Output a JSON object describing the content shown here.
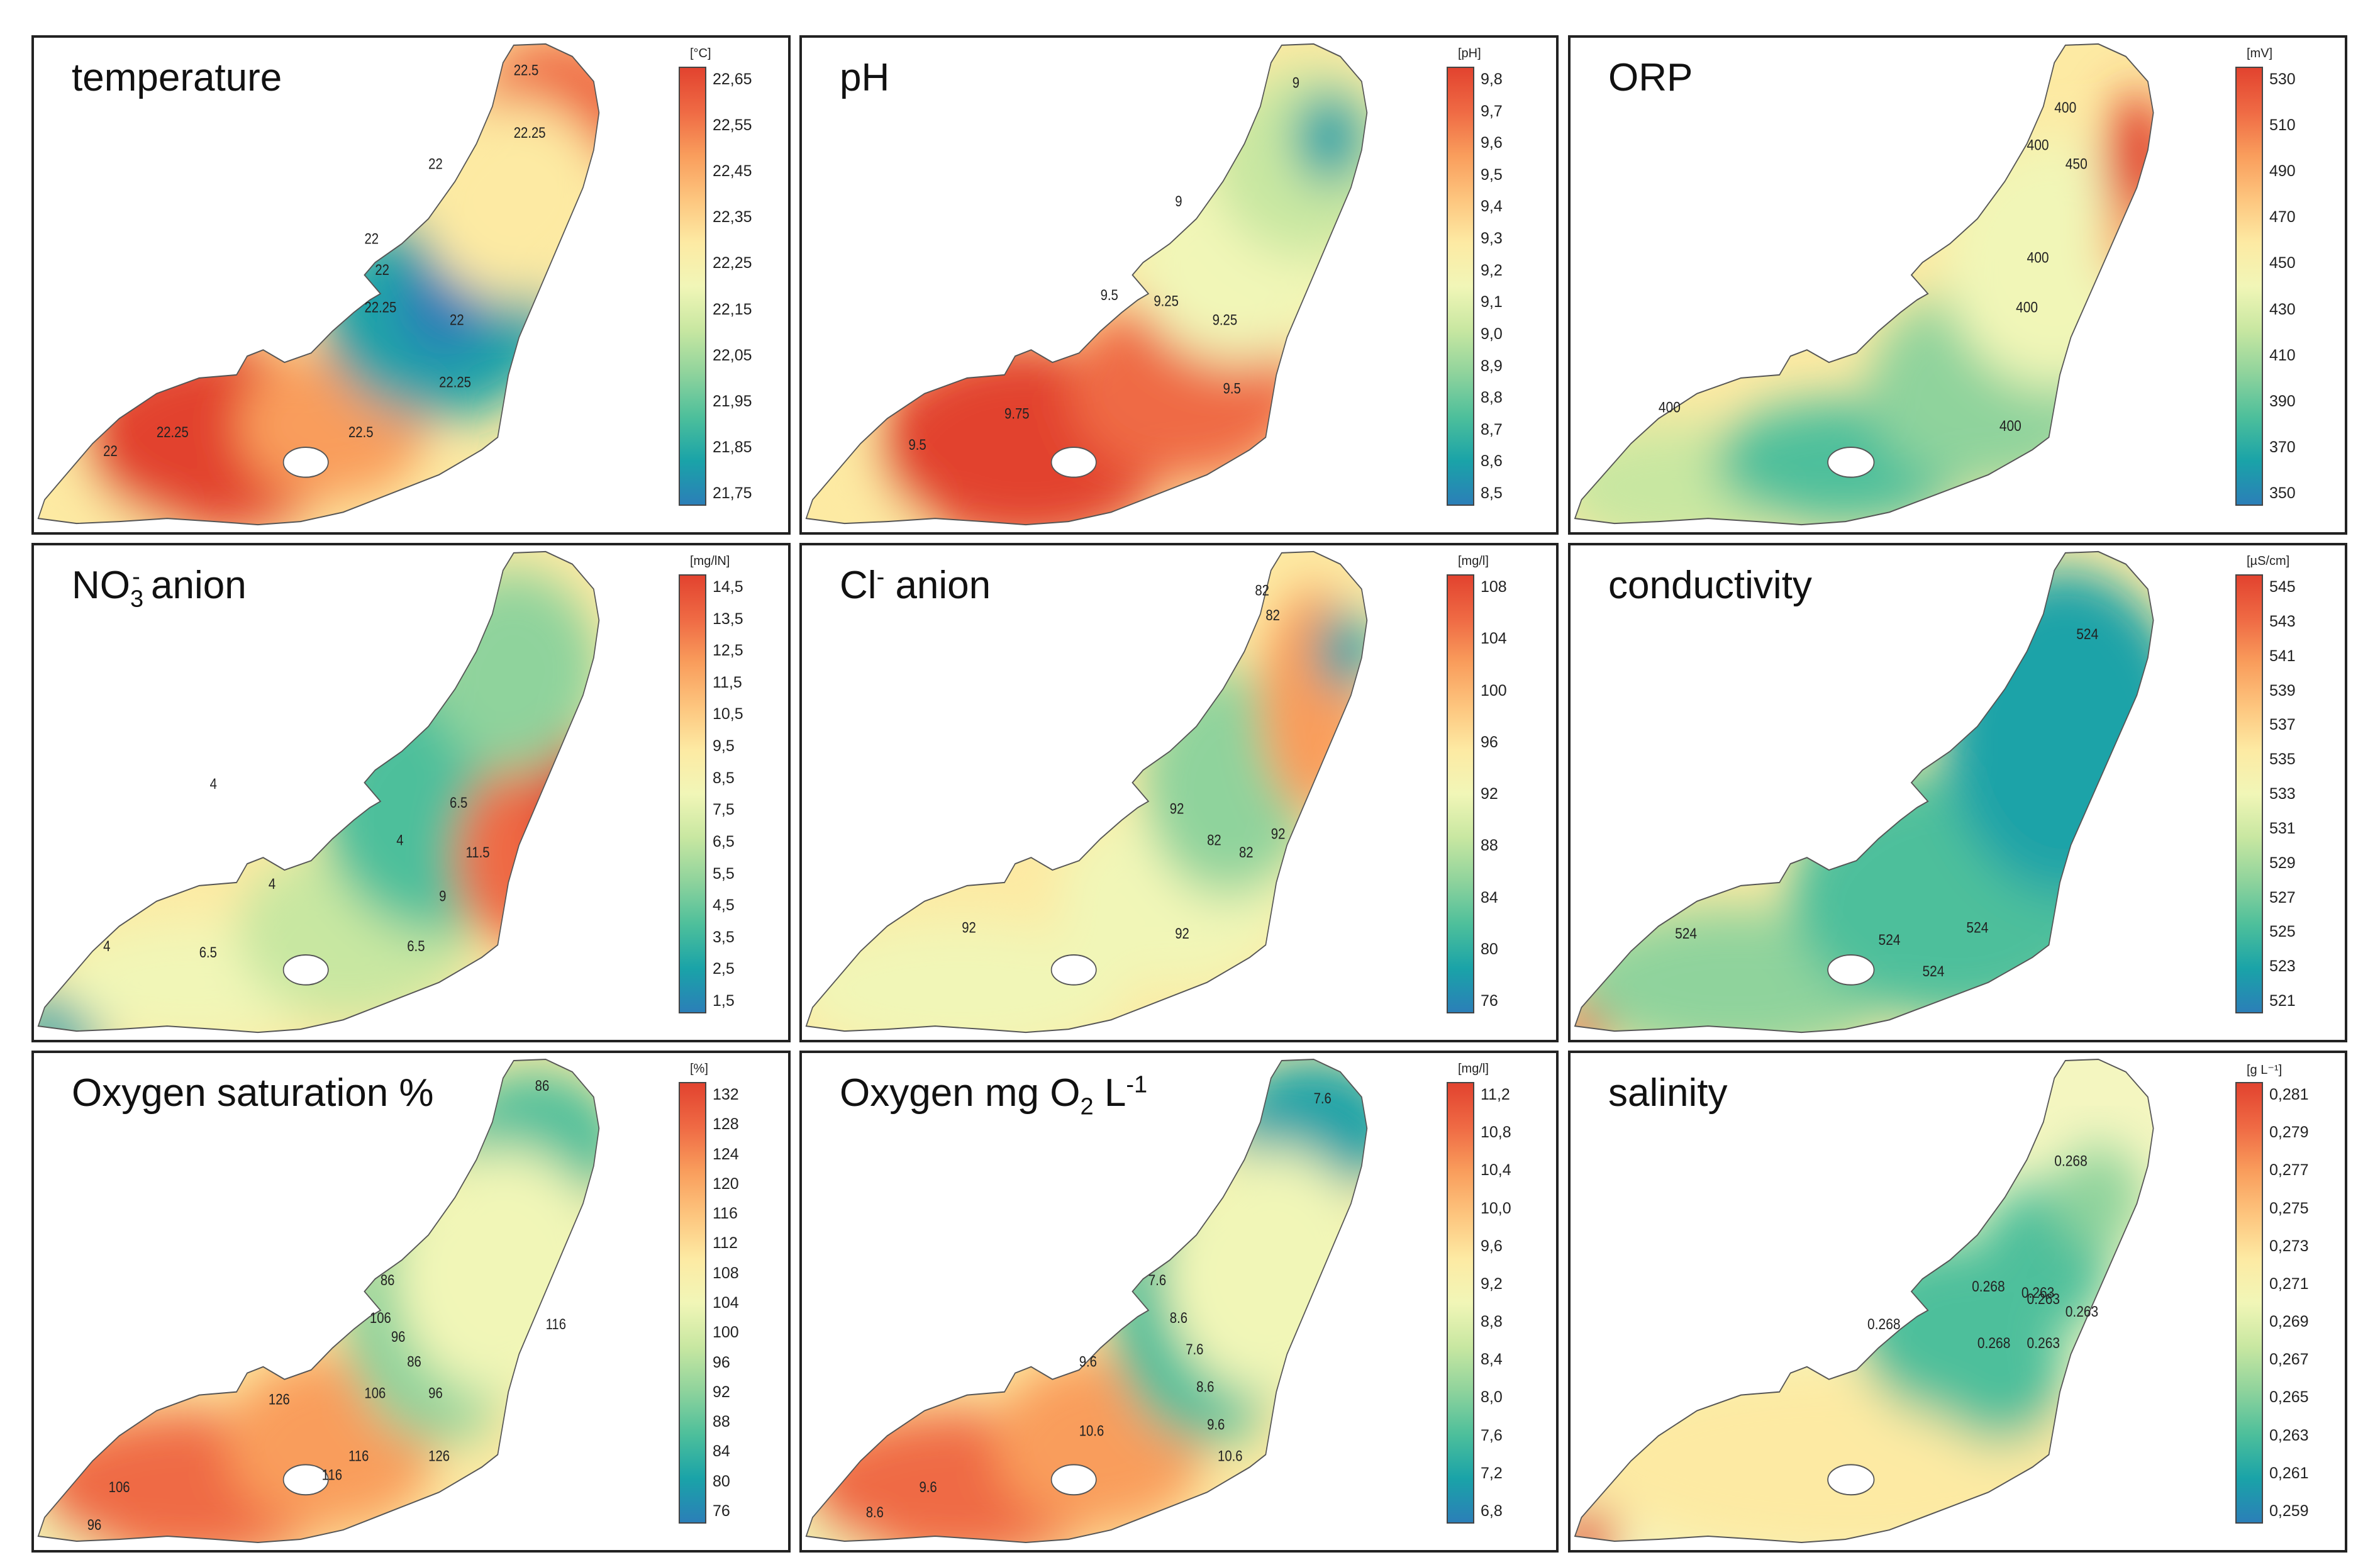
{
  "panels": [
    {
      "title": "temperature",
      "title_suffix": "",
      "unit": "[°C]",
      "ticks": [
        "22,65",
        "22,55",
        "22,45",
        "22,35",
        "22,25",
        "22,15",
        "22,05",
        "21,95",
        "21,85",
        "21,75"
      ],
      "colormap": "temp",
      "contour_labels": [
        "22.5",
        "22.25",
        "22",
        "22",
        "22",
        "22.25",
        "22",
        "22.25",
        "22.5",
        "22",
        "22.25"
      ],
      "hotspots": [
        {
          "v": 0.1,
          "pos": "center"
        }
      ]
    },
    {
      "title": "pH",
      "title_suffix": "",
      "unit": "[pH]",
      "ticks": [
        "9,8",
        "9,7",
        "9,6",
        "9,5",
        "9,4",
        "9,3",
        "9,2",
        "9,1",
        "9,0",
        "8,9",
        "8,8",
        "8,7",
        "8,6",
        "8,5"
      ],
      "colormap": "ph",
      "contour_labels": [
        "9",
        "9",
        "9.5",
        "9.25",
        "9.25",
        "9.5",
        "9.5",
        "9.75"
      ]
    },
    {
      "title": "ORP",
      "title_suffix": "",
      "unit": "[mV]",
      "ticks": [
        "530",
        "510",
        "490",
        "470",
        "450",
        "430",
        "410",
        "390",
        "370",
        "350"
      ],
      "colormap": "orp",
      "contour_labels": [
        "400",
        "400",
        "450",
        "400",
        "400",
        "400",
        "400"
      ]
    },
    {
      "title": "NO",
      "title_suffix": "anion",
      "unit": "[mg/lN]",
      "ticks": [
        "14,5",
        "13,5",
        "12,5",
        "11,5",
        "10,5",
        "9,5",
        "8,5",
        "7,5",
        "6,5",
        "5,5",
        "4,5",
        "3,5",
        "2,5",
        "1,5"
      ],
      "colormap": "no3",
      "contour_labels": [
        "4",
        "4",
        "6.5",
        "11.5",
        "4",
        "9",
        "6.5",
        "4",
        "6.5"
      ]
    },
    {
      "title": "Cl",
      "title_suffix": "anion",
      "unit": "[mg/l]",
      "ticks": [
        "108",
        "104",
        "100",
        "96",
        "92",
        "88",
        "84",
        "80",
        "76"
      ],
      "colormap": "cl",
      "contour_labels": [
        "82",
        "82",
        "92",
        "82",
        "82",
        "92",
        "92",
        "92"
      ]
    },
    {
      "title": "conductivity",
      "title_suffix": "",
      "unit": "[µS/cm]",
      "ticks": [
        "545",
        "543",
        "541",
        "539",
        "537",
        "535",
        "533",
        "531",
        "529",
        "527",
        "525",
        "523",
        "521"
      ],
      "colormap": "cond",
      "contour_labels": [
        "524",
        "524",
        "524",
        "524",
        "524"
      ]
    },
    {
      "title": "Oxygen saturation %",
      "title_suffix": "",
      "unit": "[%]",
      "ticks": [
        "132",
        "128",
        "124",
        "120",
        "116",
        "112",
        "108",
        "104",
        "100",
        "96",
        "92",
        "88",
        "84",
        "80",
        "76"
      ],
      "colormap": "oxs",
      "contour_labels": [
        "86",
        "86",
        "106",
        "96",
        "86",
        "96",
        "116",
        "106",
        "116",
        "126",
        "126",
        "116",
        "106",
        "96"
      ]
    },
    {
      "title": "Oxygen mg O",
      "title_suffix": "",
      "unit": "[mg/l]",
      "ticks": [
        "11,2",
        "10,8",
        "10,4",
        "10,0",
        "9,6",
        "9,2",
        "8,8",
        "8,4",
        "8,0",
        "7,6",
        "7,2",
        "6,8"
      ],
      "colormap": "oxm",
      "contour_labels": [
        "7.6",
        "7.6",
        "8.6",
        "7.6",
        "9.6",
        "8.6",
        "9.6",
        "10.6",
        "10.6",
        "9.6",
        "8.6"
      ]
    },
    {
      "title": "salinity",
      "title_suffix": "",
      "unit": "[g L⁻¹]",
      "ticks": [
        "0,281",
        "0,279",
        "0,277",
        "0,275",
        "0,273",
        "0,271",
        "0,269",
        "0,267",
        "0,265",
        "0,263",
        "0,261",
        "0,259"
      ],
      "colormap": "sal",
      "contour_labels": [
        "0.268",
        "0.263",
        "0.268",
        "0.263",
        "0.268",
        "0.263",
        "0.263",
        "0.268"
      ]
    }
  ],
  "title_parts": {
    "no3_sub": "3",
    "no3_sup": "-",
    "cl_sup": "-",
    "oxm_sub": "2",
    "oxm_tail": " L",
    "oxm_sup": "-1"
  }
}
